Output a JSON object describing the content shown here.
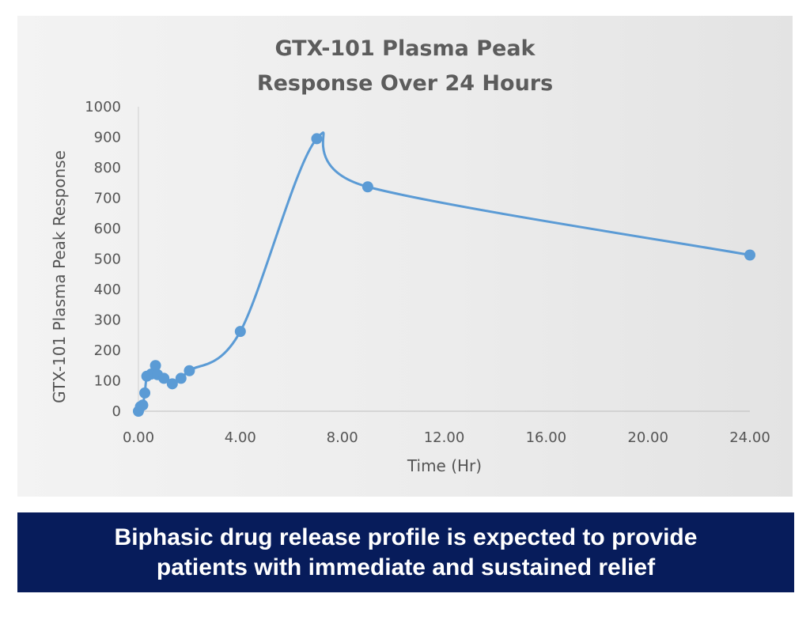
{
  "chart_data": {
    "type": "line",
    "title_lines": [
      "GTX-101 Plasma Peak",
      "Response Over 24 Hours"
    ],
    "xlabel": "Time  (Hr)",
    "ylabel": "GTX-101 Plasma Peak Response",
    "xlim": [
      0,
      24
    ],
    "ylim": [
      0,
      1000
    ],
    "x_ticks": [
      0,
      4,
      8,
      12,
      16,
      20,
      24
    ],
    "x_tick_labels": [
      "0.00",
      "4.00",
      "8.00",
      "12.00",
      "16.00",
      "20.00",
      "24.00"
    ],
    "y_ticks": [
      0,
      100,
      200,
      300,
      400,
      500,
      600,
      700,
      800,
      900,
      1000
    ],
    "y_tick_labels": [
      "0",
      "100",
      "200",
      "300",
      "400",
      "500",
      "600",
      "700",
      "800",
      "900",
      "1000"
    ],
    "grid": false,
    "legend": "none",
    "series": [
      {
        "color": "#5b9bd5",
        "points": [
          {
            "x": 0,
            "y": 0
          },
          {
            "x": 0.08,
            "y": 15
          },
          {
            "x": 0.17,
            "y": 20
          },
          {
            "x": 0.25,
            "y": 60
          },
          {
            "x": 0.33,
            "y": 115
          },
          {
            "x": 0.5,
            "y": 122
          },
          {
            "x": 0.67,
            "y": 150
          },
          {
            "x": 0.75,
            "y": 120
          },
          {
            "x": 1,
            "y": 108
          },
          {
            "x": 1.33,
            "y": 90
          },
          {
            "x": 1.67,
            "y": 108
          },
          {
            "x": 2,
            "y": 133
          },
          {
            "x": 4,
            "y": 262
          },
          {
            "x": 7,
            "y": 895
          },
          {
            "x": 9,
            "y": 737
          },
          {
            "x": 24,
            "y": 513
          }
        ]
      }
    ]
  },
  "banner": {
    "line1": "Biphasic drug release profile is expected to provide",
    "line2": "patients with immediate and sustained relief"
  }
}
